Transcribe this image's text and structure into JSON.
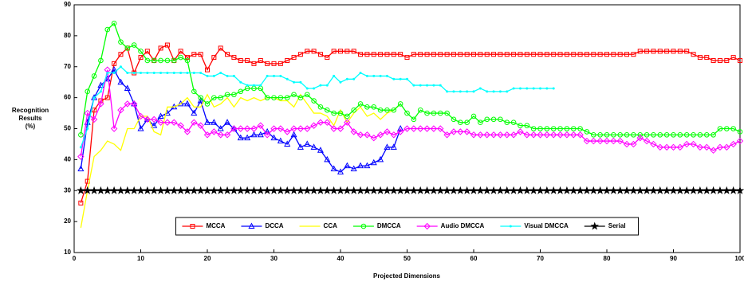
{
  "chart_data": {
    "type": "line",
    "xlabel": "Projected Dimensions",
    "ylabel": [
      "Recognition",
      "Results",
      "(%)"
    ],
    "xlim": [
      0,
      100
    ],
    "ylim": [
      10,
      90
    ],
    "xticks": [
      0,
      10,
      20,
      30,
      40,
      50,
      60,
      70,
      80,
      90,
      100
    ],
    "yticks": [
      10,
      20,
      30,
      40,
      50,
      60,
      70,
      80,
      90
    ],
    "legend": "lower center",
    "x": [
      1,
      2,
      3,
      4,
      5,
      6,
      7,
      8,
      9,
      10,
      11,
      12,
      13,
      14,
      15,
      16,
      17,
      18,
      19,
      20,
      21,
      22,
      23,
      24,
      25,
      26,
      27,
      28,
      29,
      30,
      31,
      32,
      33,
      34,
      35,
      36,
      37,
      38,
      39,
      40,
      41,
      42,
      43,
      44,
      45,
      46,
      47,
      48,
      49,
      50,
      51,
      52,
      53,
      54,
      55,
      56,
      57,
      58,
      59,
      60,
      61,
      62,
      63,
      64,
      65,
      66,
      67,
      68,
      69,
      70,
      71,
      72,
      73,
      74,
      75,
      76,
      77,
      78,
      79,
      80,
      81,
      82,
      83,
      84,
      85,
      86,
      87,
      88,
      89,
      90,
      91,
      92,
      93,
      94,
      95,
      96,
      97,
      98,
      99,
      100
    ],
    "series": [
      {
        "name": "MCCA",
        "color": "#ff0000",
        "marker": "square",
        "values": [
          26,
          33,
          56,
          59,
          60,
          71,
          74,
          76,
          68,
          73,
          75,
          72,
          76,
          77,
          72,
          75,
          73,
          74,
          74,
          69,
          73,
          76,
          74,
          73,
          72,
          72,
          71,
          72,
          71,
          71,
          71,
          72,
          73,
          74,
          75,
          75,
          74,
          73,
          75,
          75,
          75,
          75,
          74,
          74,
          74,
          74,
          74,
          74,
          74,
          73,
          74,
          74,
          74,
          74,
          74,
          74,
          74,
          74,
          74,
          74,
          74,
          74,
          74,
          74,
          74,
          74,
          74,
          74,
          74,
          74,
          74,
          74,
          74,
          74,
          74,
          74,
          74,
          74,
          74,
          74,
          74,
          74,
          74,
          74,
          75,
          75,
          75,
          75,
          75,
          75,
          75,
          75,
          74,
          73,
          73,
          72,
          72,
          72,
          73,
          72
        ]
      },
      {
        "name": "DCCA",
        "color": "#0000ff",
        "marker": "triangle",
        "values": [
          37,
          52,
          60,
          64,
          66,
          69,
          65,
          63,
          58,
          50,
          53,
          51,
          54,
          55,
          57,
          58,
          58,
          55,
          59,
          52,
          52,
          50,
          52,
          50,
          47,
          47,
          48,
          48,
          49,
          47,
          46,
          45,
          48,
          44,
          45,
          44,
          43,
          40,
          37,
          36,
          38,
          37,
          38,
          38,
          39,
          40,
          44,
          44,
          50,
          null,
          null,
          null,
          null,
          null,
          null,
          null,
          null,
          null,
          null,
          null,
          null,
          null,
          null,
          null,
          null,
          null,
          null,
          null,
          null,
          null,
          null,
          null,
          null,
          null,
          null,
          null,
          null,
          null,
          null,
          null,
          null,
          null,
          null,
          null,
          null,
          null,
          null,
          null,
          null,
          null,
          null,
          null,
          null,
          null,
          null,
          null,
          null,
          null,
          null,
          null
        ]
      },
      {
        "name": "CCA",
        "color": "#ffff00",
        "marker": "none",
        "values": [
          18,
          30,
          41,
          43,
          46,
          45,
          43,
          50,
          50,
          54,
          54,
          49,
          48,
          57,
          57,
          58,
          60,
          57,
          57,
          61,
          57,
          58,
          60,
          57,
          60,
          59,
          60,
          59,
          60,
          60,
          59,
          59,
          57,
          61,
          58,
          55,
          55,
          54,
          51,
          56,
          52,
          55,
          57,
          54,
          55,
          53,
          55,
          56,
          58,
          null,
          null,
          null,
          null,
          null,
          null,
          null,
          null,
          null,
          null,
          null,
          null,
          null,
          null,
          null,
          null,
          null,
          null,
          null,
          null,
          null,
          null,
          null,
          null,
          null,
          null,
          null,
          null,
          null,
          null,
          null,
          null,
          null,
          null,
          null,
          null,
          null,
          null,
          null,
          null,
          null,
          null,
          null,
          null,
          null,
          null,
          null,
          null,
          null,
          null,
          null
        ]
      },
      {
        "name": "DMCCA",
        "color": "#00ff00",
        "marker": "circle",
        "values": [
          48,
          62,
          67,
          72,
          82,
          84,
          78,
          76,
          77,
          75,
          72,
          72,
          72,
          72,
          72,
          73,
          72,
          62,
          60,
          58,
          60,
          60,
          61,
          61,
          62,
          63,
          63,
          63,
          60,
          60,
          60,
          60,
          61,
          60,
          61,
          59,
          57,
          56,
          55,
          55,
          54,
          56,
          58,
          57,
          57,
          56,
          56,
          56,
          58,
          55,
          53,
          56,
          55,
          55,
          55,
          55,
          53,
          52,
          52,
          54,
          52,
          53,
          53,
          53,
          52,
          52,
          51,
          51,
          50,
          50,
          50,
          50,
          50,
          50,
          50,
          50,
          49,
          48,
          48,
          48,
          48,
          48,
          48,
          48,
          48,
          48,
          48,
          48,
          48,
          48,
          48,
          48,
          48,
          48,
          48,
          48,
          50,
          50,
          50,
          49
        ]
      },
      {
        "name": "Audio DMCCA",
        "color": "#ff00ff",
        "marker": "diamond",
        "values": [
          41,
          55,
          53,
          58,
          69,
          50,
          56,
          58,
          58,
          54,
          53,
          53,
          52,
          52,
          52,
          51,
          49,
          52,
          51,
          48,
          49,
          48,
          48,
          50,
          50,
          50,
          50,
          51,
          48,
          50,
          50,
          49,
          50,
          50,
          50,
          51,
          52,
          52,
          50,
          50,
          52,
          49,
          48,
          48,
          47,
          48,
          49,
          48,
          49,
          50,
          50,
          50,
          50,
          50,
          50,
          48,
          49,
          49,
          49,
          48,
          48,
          48,
          48,
          48,
          48,
          48,
          49,
          48,
          48,
          48,
          48,
          48,
          48,
          48,
          48,
          48,
          46,
          46,
          46,
          46,
          46,
          46,
          45,
          45,
          47,
          46,
          45,
          44,
          44,
          44,
          44,
          45,
          45,
          44,
          44,
          43,
          44,
          44,
          45,
          46
        ]
      },
      {
        "name": "Visual DMCCA",
        "color": "#00ffff",
        "marker": "point",
        "values": [
          44,
          50,
          60,
          62,
          68,
          68,
          70,
          68,
          68,
          68,
          68,
          68,
          68,
          68,
          68,
          68,
          68,
          68,
          68,
          67,
          67,
          68,
          67,
          67,
          65,
          64,
          64,
          64,
          67,
          67,
          67,
          66,
          65,
          65,
          63,
          63,
          64,
          64,
          67,
          65,
          66,
          66,
          68,
          67,
          67,
          67,
          67,
          66,
          66,
          66,
          64,
          64,
          64,
          64,
          64,
          62,
          62,
          62,
          62,
          62,
          63,
          62,
          62,
          62,
          62,
          63,
          63,
          63,
          63,
          63,
          63,
          63,
          null,
          null,
          null,
          null,
          null,
          null,
          null,
          null,
          null,
          null,
          null,
          null,
          null,
          null,
          null,
          null,
          null,
          null,
          null,
          null,
          null,
          null,
          null,
          null,
          null,
          null,
          null,
          null
        ]
      },
      {
        "name": "Serial",
        "color": "#000000",
        "marker": "star",
        "values": [
          30,
          30,
          30,
          30,
          30,
          30,
          30,
          30,
          30,
          30,
          30,
          30,
          30,
          30,
          30,
          30,
          30,
          30,
          30,
          30,
          30,
          30,
          30,
          30,
          30,
          30,
          30,
          30,
          30,
          30,
          30,
          30,
          30,
          30,
          30,
          30,
          30,
          30,
          30,
          30,
          30,
          30,
          30,
          30,
          30,
          30,
          30,
          30,
          30,
          30,
          30,
          30,
          30,
          30,
          30,
          30,
          30,
          30,
          30,
          30,
          30,
          30,
          30,
          30,
          30,
          30,
          30,
          30,
          30,
          30,
          30,
          30,
          30,
          30,
          30,
          30,
          30,
          30,
          30,
          30,
          30,
          30,
          30,
          30,
          30,
          30,
          30,
          30,
          30,
          30,
          30,
          30,
          30,
          30,
          30,
          30,
          30,
          30,
          30,
          30
        ]
      }
    ]
  }
}
